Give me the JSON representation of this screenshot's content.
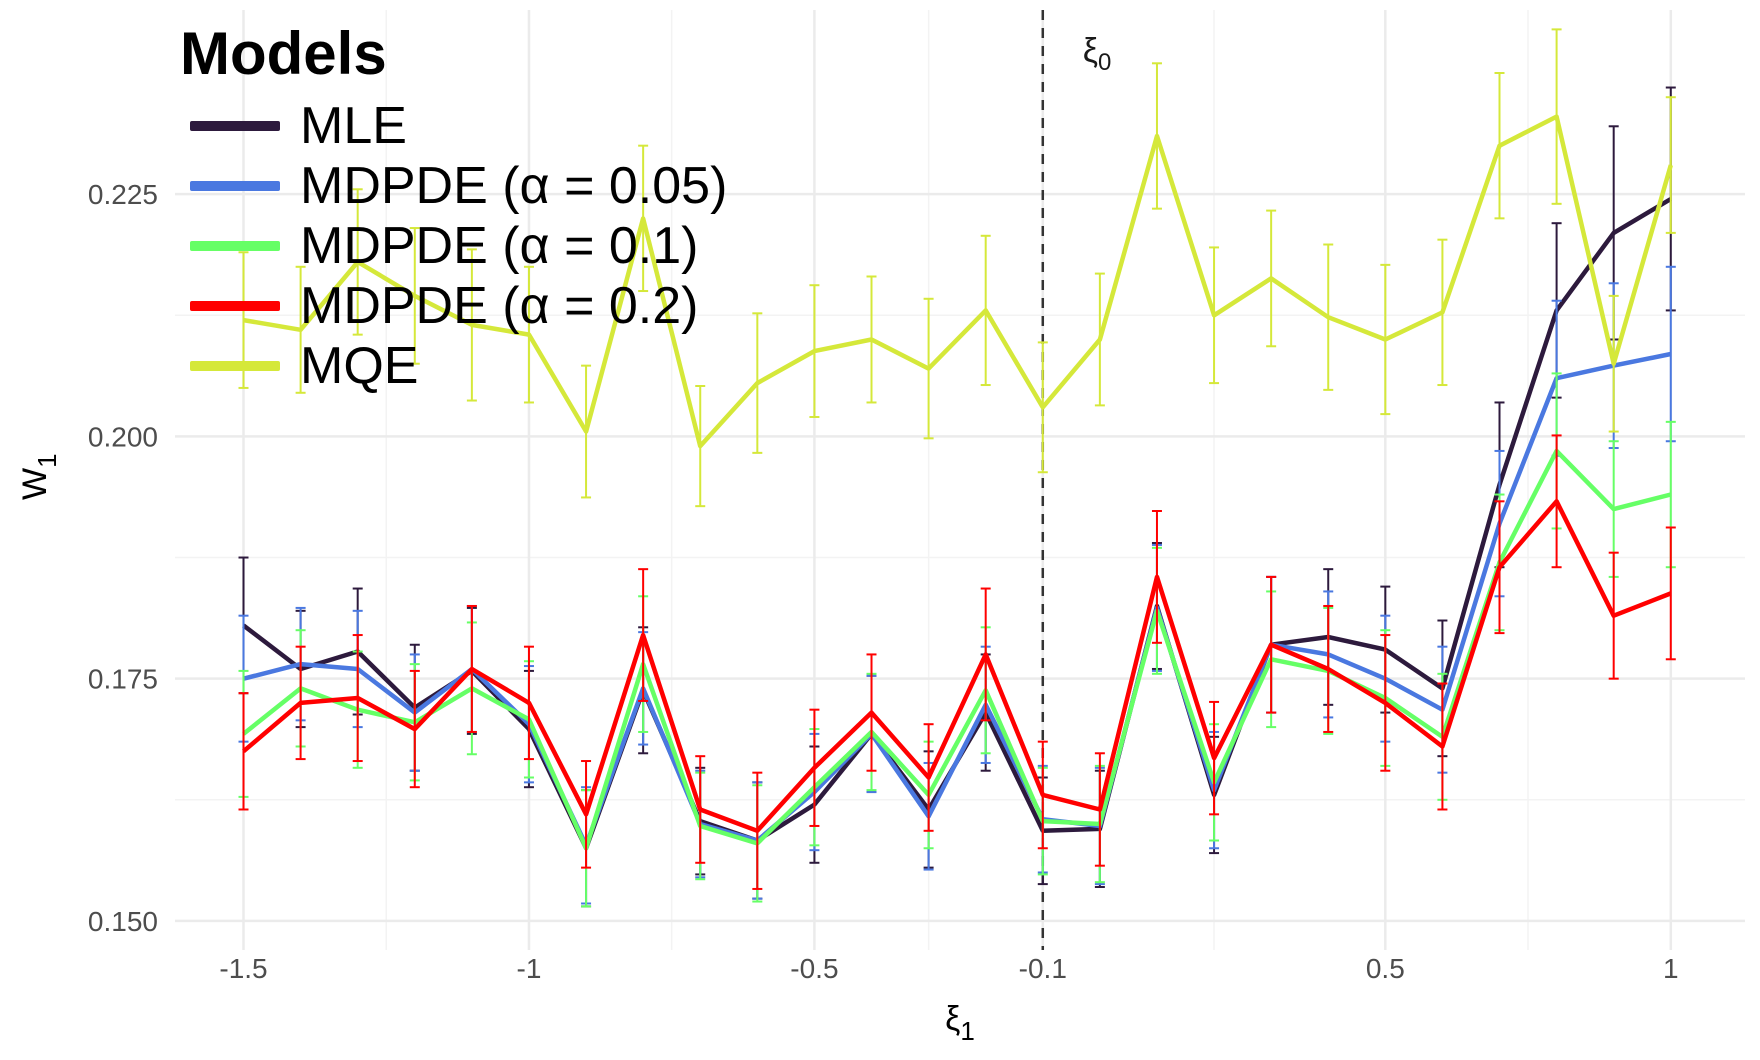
{
  "chart_data": {
    "type": "line",
    "title": "",
    "xlabel": "ξ",
    "xlabel_sub": "1",
    "ylabel": "W",
    "ylabel_sub": "1",
    "x": [
      -1.5,
      -1.4,
      -1.3,
      -1.2,
      -1.1,
      -1.0,
      -0.9,
      -0.8,
      -0.7,
      -0.6,
      -0.5,
      -0.4,
      -0.3,
      -0.2,
      -0.1,
      0.0,
      0.1,
      0.2,
      0.3,
      0.4,
      0.5,
      0.6,
      0.7,
      0.8,
      0.9,
      1.0
    ],
    "xlim": [
      -1.62,
      1.13
    ],
    "ylim": [
      0.147,
      0.244
    ],
    "x_ticks": [
      -1.5,
      -1.0,
      -0.5,
      -0.1,
      0.5,
      1.0
    ],
    "x_tick_labels": [
      "-1.5",
      "-1",
      "-0.5",
      "-0.1",
      "0.5",
      "1"
    ],
    "y_ticks": [
      0.15,
      0.175,
      0.2,
      0.225
    ],
    "y_tick_labels": [
      "0.150",
      "0.175",
      "0.200",
      "0.225"
    ],
    "grid": true,
    "reference_line": {
      "x": -0.1,
      "label": "ξ",
      "label_sub": "0",
      "style": "dashed"
    },
    "legend": {
      "title": "Models",
      "position": "top-left"
    },
    "series": [
      {
        "name": "MLE",
        "color": "#2d1a3d",
        "values": [
          0.1805,
          0.176,
          0.1778,
          0.172,
          0.1758,
          0.1698,
          0.1575,
          0.1738,
          0.1603,
          0.1583,
          0.162,
          0.1693,
          0.1615,
          0.1715,
          0.1593,
          0.1595,
          0.1825,
          0.163,
          0.1785,
          0.1793,
          0.178,
          0.174,
          0.195,
          0.213,
          0.221,
          0.2245
        ],
        "errors": [
          0.007,
          0.006,
          0.0065,
          0.0065,
          0.0065,
          0.006,
          0.006,
          0.0065,
          0.0055,
          0.006,
          0.006,
          0.006,
          0.006,
          0.006,
          0.0055,
          0.006,
          0.0065,
          0.006,
          0.007,
          0.007,
          0.0065,
          0.007,
          0.0085,
          0.009,
          0.011,
          0.0115
        ]
      },
      {
        "name": "MDPDE (α = 0.05)",
        "color": "#4a78e0",
        "values": [
          0.175,
          0.1765,
          0.176,
          0.1715,
          0.176,
          0.1703,
          0.1578,
          0.174,
          0.16,
          0.1583,
          0.1633,
          0.1693,
          0.1608,
          0.1723,
          0.1605,
          0.1598,
          0.1823,
          0.1635,
          0.1785,
          0.1775,
          0.175,
          0.1718,
          0.191,
          0.206,
          0.2073,
          0.2085
        ],
        "errors": [
          0.0065,
          0.0058,
          0.006,
          0.006,
          0.0065,
          0.006,
          0.006,
          0.0058,
          0.0055,
          0.006,
          0.006,
          0.006,
          0.0055,
          0.006,
          0.0055,
          0.006,
          0.0065,
          0.006,
          0.007,
          0.0065,
          0.0065,
          0.0065,
          0.0075,
          0.008,
          0.0085,
          0.009
        ]
      },
      {
        "name": "MDPDE (α = 0.1)",
        "color": "#66ff66",
        "values": [
          0.1693,
          0.174,
          0.1718,
          0.1705,
          0.174,
          0.1708,
          0.1575,
          0.1765,
          0.1598,
          0.158,
          0.1638,
          0.1695,
          0.163,
          0.1738,
          0.1603,
          0.16,
          0.182,
          0.1643,
          0.177,
          0.1758,
          0.173,
          0.169,
          0.187,
          0.1985,
          0.1925,
          0.194
        ],
        "errors": [
          0.0065,
          0.006,
          0.006,
          0.006,
          0.0068,
          0.006,
          0.006,
          0.007,
          0.0055,
          0.006,
          0.006,
          0.006,
          0.0055,
          0.0065,
          0.0055,
          0.006,
          0.0065,
          0.006,
          0.007,
          0.0065,
          0.007,
          0.0065,
          0.007,
          0.008,
          0.007,
          0.0075
        ]
      },
      {
        "name": "MDPDE (α = 0.2)",
        "color": "#ff0000",
        "values": [
          0.1675,
          0.1725,
          0.173,
          0.1698,
          0.176,
          0.1725,
          0.161,
          0.1795,
          0.1615,
          0.1593,
          0.1658,
          0.1715,
          0.1648,
          0.1775,
          0.163,
          0.1615,
          0.1855,
          0.1668,
          0.1785,
          0.176,
          0.1725,
          0.168,
          0.1865,
          0.1933,
          0.1815,
          0.1838
        ],
        "errors": [
          0.006,
          0.0058,
          0.0065,
          0.006,
          0.0065,
          0.0058,
          0.0055,
          0.0068,
          0.0055,
          0.006,
          0.006,
          0.006,
          0.0055,
          0.0068,
          0.0055,
          0.0058,
          0.0068,
          0.0058,
          0.007,
          0.0065,
          0.007,
          0.0065,
          0.0068,
          0.0068,
          0.0065,
          0.0068
        ]
      },
      {
        "name": "MQE",
        "color": "#d5e83a",
        "values": [
          0.212,
          0.211,
          0.218,
          0.2145,
          0.2115,
          0.2105,
          0.2005,
          0.2225,
          0.199,
          0.2055,
          0.2088,
          0.21,
          0.207,
          0.213,
          0.203,
          0.21,
          0.231,
          0.2125,
          0.2163,
          0.2123,
          0.21,
          0.2128,
          0.23,
          0.233,
          0.2075,
          0.228
        ],
        "errors": [
          0.007,
          0.0065,
          0.0075,
          0.007,
          0.0078,
          0.007,
          0.0068,
          0.0075,
          0.0062,
          0.0072,
          0.0068,
          0.0065,
          0.0072,
          0.0077,
          0.0067,
          0.0068,
          0.0075,
          0.007,
          0.007,
          0.0075,
          0.0077,
          0.0075,
          0.0075,
          0.009,
          0.007,
          0.007
        ]
      }
    ]
  }
}
